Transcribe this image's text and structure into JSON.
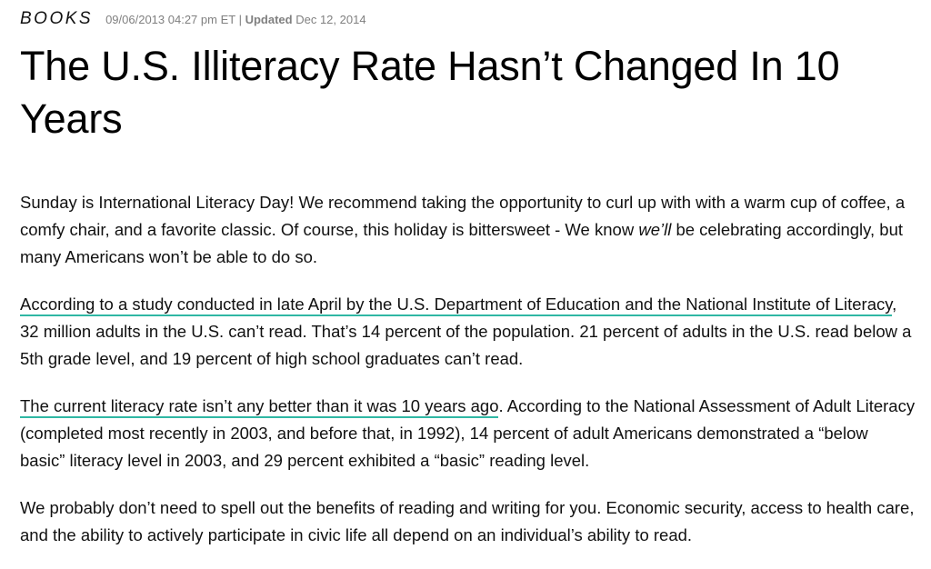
{
  "header": {
    "section": "BOOKS",
    "published": "09/06/2013 04:27 pm ET",
    "separator": "|",
    "updated_label": "Updated",
    "updated_date": "Dec 12, 2014"
  },
  "article": {
    "title": "The U.S. Illiteracy Rate Hasn’t Changed In 10 Years",
    "p1": {
      "text_a": "Sunday is International Literacy Day! We recommend taking the opportunity to curl up with with a warm cup of coffee, a comfy chair, and a favorite classic. Of course, this holiday is bittersweet - We know ",
      "emphasis": "we’ll",
      "text_b": " be celebrating accordingly, but many Americans won’t be able to do so."
    },
    "p2": {
      "link": "According to a study conducted in late April by the U.S. Department of Education and the National Institute of Literacy",
      "text": ", 32 million adults in the U.S. can’t read. That’s 14 percent of the population. 21 percent of adults in the U.S. read below a 5th grade level, and 19 percent of high school graduates can’t read."
    },
    "p3": {
      "link": "The current literacy rate isn’t any better than it was 10 years ago",
      "text": ". According to the National Assessment of Adult Literacy (completed most recently in 2003, and before that, in 1992), 14 percent of adult Americans demonstrated a “below basic” literacy level in 2003, and 29 percent exhibited a “basic” reading level."
    },
    "p4": {
      "text": "We probably don’t need to spell out the benefits of reading and writing for you. Economic security, access to health care, and the ability to actively participate in civic life all depend on an individual’s ability to read."
    }
  },
  "colors": {
    "link_underline": "#2fb7a4",
    "meta_text": "#808080",
    "body_text": "#111111"
  }
}
